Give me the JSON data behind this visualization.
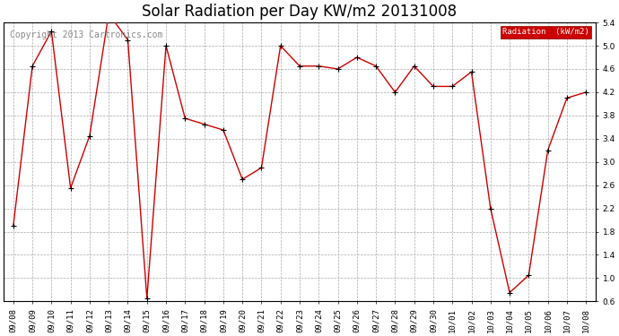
{
  "title": "Solar Radiation per Day KW/m2 20131008",
  "copyright_text": "Copyright 2013 Cartronics.com",
  "legend_label": "Radiation  (kW/m2)",
  "dates": [
    "09/08",
    "09/09",
    "09/10",
    "09/11",
    "09/12",
    "09/13",
    "09/14",
    "09/15",
    "09/16",
    "09/17",
    "09/18",
    "09/19",
    "09/20",
    "09/21",
    "09/22",
    "09/23",
    "09/24",
    "09/25",
    "09/26",
    "09/27",
    "09/28",
    "09/29",
    "09/30",
    "10/01",
    "10/02",
    "10/03",
    "10/04",
    "10/05",
    "10/06",
    "10/07",
    "10/08"
  ],
  "values": [
    1.9,
    4.65,
    5.25,
    2.55,
    3.45,
    5.55,
    5.1,
    0.65,
    5.0,
    3.75,
    3.65,
    3.55,
    2.7,
    2.9,
    5.0,
    4.65,
    4.65,
    4.6,
    4.8,
    4.65,
    4.2,
    4.65,
    4.3,
    4.3,
    4.55,
    2.2,
    0.75,
    1.05,
    3.2,
    4.1,
    4.2
  ],
  "line_color": "#cc0000",
  "marker": "+",
  "marker_color": "#000000",
  "grid_color": "#aaaaaa",
  "bg_color": "#ffffff",
  "plot_bg_color": "#ffffff",
  "ylim": [
    0.6,
    5.4
  ],
  "yticks": [
    0.6,
    1.0,
    1.4,
    1.8,
    2.2,
    2.6,
    3.0,
    3.4,
    3.8,
    4.2,
    4.6,
    5.0,
    5.4
  ],
  "legend_bg_color": "#cc0000",
  "legend_text_color": "#ffffff",
  "title_fontsize": 12,
  "tick_fontsize": 6.5,
  "copyright_fontsize": 7
}
